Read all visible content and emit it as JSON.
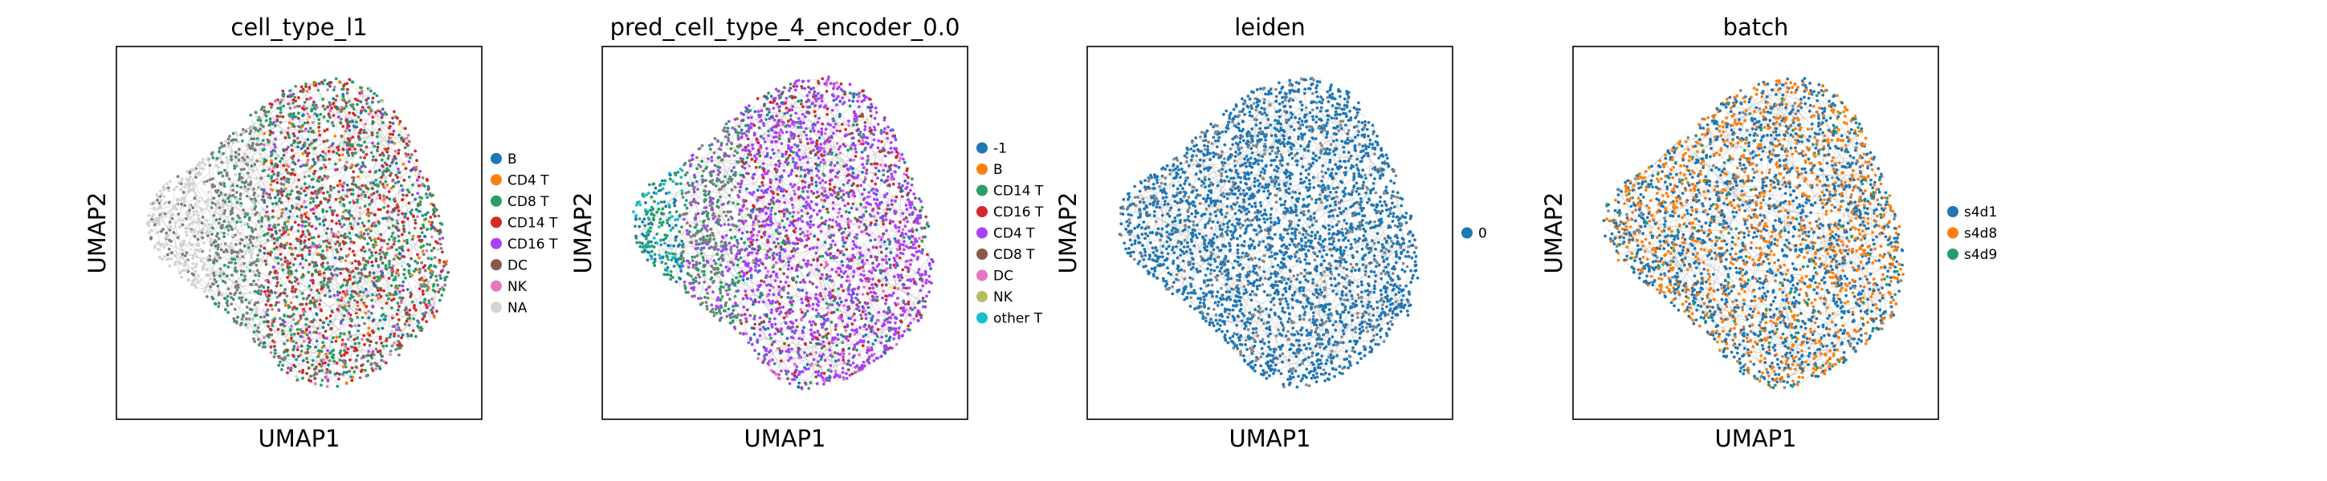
{
  "chart_data": [
    {
      "type": "scatter",
      "title": "cell_type_l1",
      "xlabel": "UMAP1",
      "ylabel": "UMAP2",
      "xticks": [],
      "yticks": [],
      "grid": false,
      "legend_position": "right",
      "series": [
        {
          "name": "B",
          "color": "#1f77b4"
        },
        {
          "name": "CD4 T",
          "color": "#ff7f0e"
        },
        {
          "name": "CD8 T",
          "color": "#279e68"
        },
        {
          "name": "CD14 T",
          "color": "#d62728"
        },
        {
          "name": "CD16 T",
          "color": "#aa40fc"
        },
        {
          "name": "DC",
          "color": "#8c564b"
        },
        {
          "name": "NK",
          "color": "#e377c2"
        },
        {
          "name": "NA",
          "color": "#d3d3d3"
        }
      ]
    },
    {
      "type": "scatter",
      "title": "pred_cell_type_4_encoder_0.0",
      "xlabel": "UMAP1",
      "ylabel": "UMAP2",
      "xticks": [],
      "yticks": [],
      "grid": false,
      "legend_position": "right",
      "series": [
        {
          "name": "-1",
          "color": "#1f77b4"
        },
        {
          "name": "B",
          "color": "#ff7f0e"
        },
        {
          "name": "CD14 T",
          "color": "#279e68"
        },
        {
          "name": "CD16 T",
          "color": "#d62728"
        },
        {
          "name": "CD4 T",
          "color": "#aa40fc"
        },
        {
          "name": "CD8 T",
          "color": "#8c564b"
        },
        {
          "name": "DC",
          "color": "#e377c2"
        },
        {
          "name": "NK",
          "color": "#b5bd61"
        },
        {
          "name": "other T",
          "color": "#17becf"
        }
      ]
    },
    {
      "type": "scatter",
      "title": "leiden",
      "xlabel": "UMAP1",
      "ylabel": "UMAP2",
      "xticks": [],
      "yticks": [],
      "grid": false,
      "legend_position": "right",
      "series": [
        {
          "name": "0",
          "color": "#1f77b4"
        }
      ]
    },
    {
      "type": "scatter",
      "title": "batch",
      "xlabel": "UMAP1",
      "ylabel": "UMAP2",
      "xticks": [],
      "yticks": [],
      "grid": false,
      "legend_position": "right",
      "series": [
        {
          "name": "s4d1",
          "color": "#1f77b4"
        },
        {
          "name": "s4d8",
          "color": "#ff7f0e"
        },
        {
          "name": "s4d9",
          "color": "#279e68"
        }
      ]
    }
  ]
}
